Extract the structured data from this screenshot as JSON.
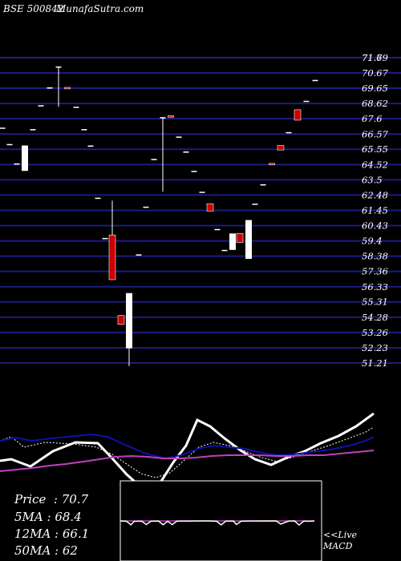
{
  "header": {
    "exchange_code": "BSE 500842",
    "site": "MunafaSutra.com"
  },
  "chart_data": [
    {
      "type": "candlestick",
      "price_axis_ticks": [
        71.69,
        71.7,
        70.67,
        69.65,
        68.62,
        67.6,
        66.57,
        65.55,
        64.52,
        63.5,
        62.48,
        61.45,
        60.43,
        59.4,
        58.38,
        57.36,
        56.33,
        55.31,
        54.28,
        53.26,
        52.23,
        51.21
      ],
      "ylim": [
        51.21,
        71.69
      ],
      "grid": "horizontal",
      "candles": [
        {
          "x": 3,
          "open": 67.0,
          "close": 67.0,
          "high": 67.0,
          "low": 67.0,
          "color": "white"
        },
        {
          "x": 12,
          "open": 65.9,
          "close": 65.9,
          "high": 65.9,
          "low": 65.9,
          "color": "white"
        },
        {
          "x": 21,
          "open": 64.6,
          "close": 64.6,
          "high": 64.6,
          "low": 64.6,
          "color": "white"
        },
        {
          "x": 31,
          "open": 65.8,
          "close": 64.1,
          "high": 65.8,
          "low": 64.1,
          "color": "white"
        },
        {
          "x": 41,
          "open": 66.9,
          "close": 66.9,
          "high": 66.9,
          "low": 66.9,
          "color": "white"
        },
        {
          "x": 51,
          "open": 68.5,
          "close": 68.5,
          "high": 68.5,
          "low": 68.5,
          "color": "white"
        },
        {
          "x": 62,
          "open": 69.7,
          "close": 69.7,
          "high": 69.7,
          "low": 69.7,
          "color": "white"
        },
        {
          "x": 73,
          "open": 71.1,
          "close": 71.1,
          "high": 71.1,
          "low": 68.4,
          "color": "white"
        },
        {
          "x": 84,
          "open": 69.7,
          "close": 69.6,
          "high": 69.7,
          "low": 69.6,
          "color": "red"
        },
        {
          "x": 95,
          "open": 68.4,
          "close": 68.4,
          "high": 68.4,
          "low": 68.4,
          "color": "white"
        },
        {
          "x": 105,
          "open": 66.9,
          "close": 66.9,
          "high": 66.9,
          "low": 66.9,
          "color": "white"
        },
        {
          "x": 113,
          "open": 65.8,
          "close": 65.8,
          "high": 65.8,
          "low": 65.8,
          "color": "white"
        },
        {
          "x": 122,
          "open": 62.3,
          "close": 62.3,
          "high": 62.3,
          "low": 62.3,
          "color": "white"
        },
        {
          "x": 131,
          "open": 59.6,
          "close": 59.6,
          "high": 59.6,
          "low": 59.6,
          "color": "white"
        },
        {
          "x": 140,
          "open": 59.8,
          "close": 56.8,
          "high": 62.1,
          "low": 56.8,
          "color": "red"
        },
        {
          "x": 151,
          "open": 54.4,
          "close": 53.8,
          "high": 54.4,
          "low": 53.8,
          "color": "red"
        },
        {
          "x": 161,
          "open": 55.9,
          "close": 52.2,
          "high": 55.9,
          "low": 51.0,
          "color": "white"
        },
        {
          "x": 173,
          "open": 58.5,
          "close": 58.5,
          "high": 58.5,
          "low": 58.5,
          "color": "white"
        },
        {
          "x": 182,
          "open": 61.7,
          "close": 61.7,
          "high": 61.7,
          "low": 61.7,
          "color": "white"
        },
        {
          "x": 192,
          "open": 64.9,
          "close": 64.9,
          "high": 64.9,
          "low": 64.9,
          "color": "white"
        },
        {
          "x": 203,
          "open": 67.7,
          "close": 67.7,
          "high": 67.7,
          "low": 62.7,
          "color": "white"
        },
        {
          "x": 213,
          "open": 67.8,
          "close": 67.7,
          "high": 67.8,
          "low": 67.7,
          "color": "red"
        },
        {
          "x": 223,
          "open": 66.4,
          "close": 66.4,
          "high": 66.4,
          "low": 66.4,
          "color": "white"
        },
        {
          "x": 232,
          "open": 65.4,
          "close": 65.4,
          "high": 65.4,
          "low": 65.4,
          "color": "white"
        },
        {
          "x": 242,
          "open": 64.1,
          "close": 64.1,
          "high": 64.1,
          "low": 64.1,
          "color": "white"
        },
        {
          "x": 252,
          "open": 62.7,
          "close": 62.7,
          "high": 62.7,
          "low": 62.7,
          "color": "white"
        },
        {
          "x": 262,
          "open": 61.9,
          "close": 61.4,
          "high": 61.9,
          "low": 61.4,
          "color": "red"
        },
        {
          "x": 271,
          "open": 60.2,
          "close": 60.2,
          "high": 60.2,
          "low": 60.2,
          "color": "white"
        },
        {
          "x": 280,
          "open": 58.8,
          "close": 58.8,
          "high": 58.8,
          "low": 58.8,
          "color": "white"
        },
        {
          "x": 290,
          "open": 59.9,
          "close": 58.8,
          "high": 59.9,
          "low": 58.8,
          "color": "white"
        },
        {
          "x": 299,
          "open": 59.9,
          "close": 59.3,
          "high": 59.9,
          "low": 59.3,
          "color": "red"
        },
        {
          "x": 310,
          "open": 60.8,
          "close": 58.2,
          "high": 60.8,
          "low": 58.2,
          "color": "white"
        },
        {
          "x": 318,
          "open": 61.9,
          "close": 61.9,
          "high": 61.9,
          "low": 61.9,
          "color": "white"
        },
        {
          "x": 328,
          "open": 63.2,
          "close": 63.2,
          "high": 63.2,
          "low": 63.2,
          "color": "white"
        },
        {
          "x": 339,
          "open": 64.6,
          "close": 64.5,
          "high": 64.6,
          "low": 64.5,
          "color": "red"
        },
        {
          "x": 350,
          "open": 65.8,
          "close": 65.5,
          "high": 65.8,
          "low": 65.5,
          "color": "red"
        },
        {
          "x": 360,
          "open": 66.7,
          "close": 66.7,
          "high": 66.7,
          "low": 66.7,
          "color": "white"
        },
        {
          "x": 371,
          "open": 68.2,
          "close": 67.5,
          "high": 68.2,
          "low": 67.5,
          "color": "red"
        },
        {
          "x": 382,
          "open": 68.8,
          "close": 68.8,
          "high": 68.8,
          "low": 68.8,
          "color": "white"
        },
        {
          "x": 393,
          "open": 70.2,
          "close": 70.2,
          "high": 70.2,
          "low": 70.2,
          "color": "white"
        }
      ]
    },
    {
      "type": "line",
      "name": "moving averages",
      "yrange": [
        0,
        100
      ],
      "series": [
        {
          "key": "price",
          "color": "#ffffff",
          "points": [
            [
              0,
              75
            ],
            [
              14,
              73
            ],
            [
              38,
              82
            ],
            [
              66,
              63
            ],
            [
              94,
              52
            ],
            [
              122,
              53
            ],
            [
              140,
              72
            ],
            [
              158,
              92
            ],
            [
              176,
              108
            ],
            [
              200,
              102
            ],
            [
              216,
              77
            ],
            [
              232,
              56
            ],
            [
              246,
              24
            ],
            [
              262,
              32
            ],
            [
              280,
              47
            ],
            [
              300,
              62
            ],
            [
              318,
              73
            ],
            [
              338,
              80
            ],
            [
              360,
              70
            ],
            [
              380,
              63
            ],
            [
              400,
              53
            ],
            [
              422,
              44
            ],
            [
              444,
              32
            ],
            [
              466,
              16
            ]
          ]
        },
        {
          "key": "ma5",
          "color": "#ffffff",
          "dashed": true,
          "points": [
            [
              0,
              50
            ],
            [
              14,
              45
            ],
            [
              30,
              58
            ],
            [
              56,
              52
            ],
            [
              92,
              54
            ],
            [
              120,
              58
            ],
            [
              140,
              67
            ],
            [
              158,
              79
            ],
            [
              176,
              91
            ],
            [
              194,
              96
            ],
            [
              212,
              90
            ],
            [
              230,
              74
            ],
            [
              248,
              58
            ],
            [
              266,
              52
            ],
            [
              286,
              56
            ],
            [
              306,
              63
            ],
            [
              326,
              71
            ],
            [
              346,
              76
            ],
            [
              366,
              70
            ],
            [
              388,
              63
            ],
            [
              410,
              56
            ],
            [
              432,
              48
            ],
            [
              456,
              39
            ],
            [
              466,
              33
            ]
          ]
        },
        {
          "key": "ma12",
          "color": "#1010aa",
          "points": [
            [
              0,
              50
            ],
            [
              20,
              46
            ],
            [
              40,
              50
            ],
            [
              64,
              47
            ],
            [
              94,
              44
            ],
            [
              114,
              42
            ],
            [
              134,
              45
            ],
            [
              158,
              56
            ],
            [
              182,
              66
            ],
            [
              206,
              72
            ],
            [
              226,
              68
            ],
            [
              246,
              60
            ],
            [
              266,
              56
            ],
            [
              286,
              58
            ],
            [
              306,
              60
            ],
            [
              326,
              65
            ],
            [
              346,
              68
            ],
            [
              366,
              67
            ],
            [
              388,
              64
            ],
            [
              412,
              61
            ],
            [
              436,
              56
            ],
            [
              456,
              50
            ],
            [
              466,
              45
            ]
          ]
        },
        {
          "key": "ma50",
          "color": "#c040c0",
          "points": [
            [
              0,
              88
            ],
            [
              20,
              86
            ],
            [
              40,
              84
            ],
            [
              62,
              81
            ],
            [
              82,
              79
            ],
            [
              104,
              76
            ],
            [
              124,
              73
            ],
            [
              144,
              70
            ],
            [
              164,
              69
            ],
            [
              184,
              70
            ],
            [
              204,
              72
            ],
            [
              224,
              72
            ],
            [
              244,
              71
            ],
            [
              264,
              69
            ],
            [
              284,
              68
            ],
            [
              304,
              68
            ],
            [
              324,
              68
            ],
            [
              344,
              69
            ],
            [
              364,
              69
            ],
            [
              384,
              68
            ],
            [
              404,
              68
            ],
            [
              424,
              66
            ],
            [
              446,
              64
            ],
            [
              466,
              62
            ]
          ]
        }
      ]
    },
    {
      "type": "line",
      "name": "macd",
      "yrange": [
        0,
        10
      ],
      "series": [
        {
          "key": "signal",
          "color": "#c040c0",
          "points": [
            [
              0,
              3.0
            ],
            [
              254,
              3.0
            ]
          ]
        },
        {
          "key": "macd",
          "color": "#ffffff",
          "points": [
            [
              0,
              3.0
            ],
            [
              8,
              3.3
            ],
            [
              14,
              6.5
            ],
            [
              18,
              3.4
            ],
            [
              28,
              3.2
            ],
            [
              34,
              6.2
            ],
            [
              40,
              3.3
            ],
            [
              50,
              3.1
            ],
            [
              56,
              6.4
            ],
            [
              62,
              3.3
            ],
            [
              68,
              6.3
            ],
            [
              74,
              3.2
            ],
            [
              116,
              3.0
            ],
            [
              126,
              3.3
            ],
            [
              132,
              6.5
            ],
            [
              138,
              3.2
            ],
            [
              148,
              3.1
            ],
            [
              152,
              6.2
            ],
            [
              158,
              3.3
            ],
            [
              166,
              3.1
            ],
            [
              204,
              3.0
            ],
            [
              210,
              5.8
            ],
            [
              220,
              3.2
            ],
            [
              228,
              3.0
            ],
            [
              234,
              6.6
            ],
            [
              240,
              3.2
            ],
            [
              248,
              3.3
            ],
            [
              254,
              3.0
            ]
          ]
        }
      ]
    }
  ],
  "stats": {
    "price_label": "Price",
    "price_value": "70.7",
    "ma5_label": "5MA",
    "ma5_value": "68.4",
    "ma12_label": "12MA",
    "ma12_value": "66.1",
    "ma50_label": "50MA",
    "ma50_value": "62"
  },
  "macd_label": {
    "line1": "<<Live",
    "line2": "MACD"
  },
  "colors": {
    "grid": "#1c1c80",
    "candle_up": "#ffffff",
    "candle_down": "#cc0000",
    "macd_box": "#ffffff"
  }
}
